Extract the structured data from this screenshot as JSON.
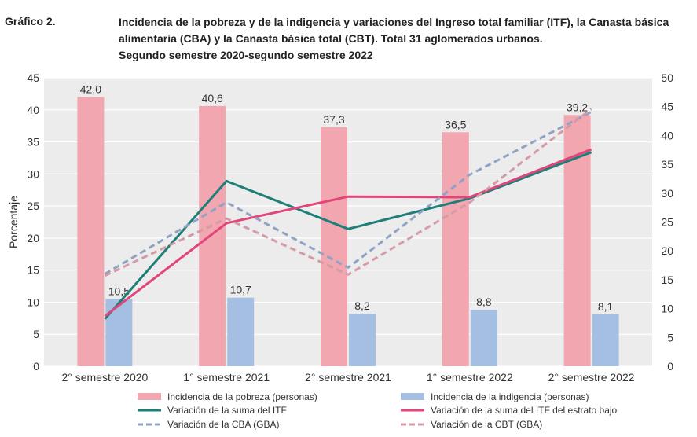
{
  "header": {
    "label": "Gráfico 2.",
    "title_lines": [
      "Incidencia de la pobreza y de la indigencia y variaciones del Ingreso total familiar (ITF), la Canasta básica",
      "alimentaria (CBA) y la Canasta básica total (CBT). Total 31 aglomerados urbanos.",
      "Segundo semestre 2020-segundo semestre 2022"
    ]
  },
  "chart_data": {
    "type": "bar",
    "categories": [
      "2° semestre 2020",
      "1° semestre 2021",
      "2° semestre 2021",
      "1° semestre 2022",
      "2° semestre 2022"
    ],
    "ylabel": "Porcentaje",
    "ylim": [
      0,
      45
    ],
    "yticks": [
      0,
      5,
      10,
      15,
      20,
      25,
      30,
      35,
      40,
      45
    ],
    "y2lim": [
      0,
      50
    ],
    "y2ticks": [
      0,
      5,
      10,
      15,
      20,
      25,
      30,
      35,
      40,
      45,
      50
    ],
    "grid": true,
    "legend_position": "bottom",
    "bar_series": [
      {
        "name": "Incidencia de la pobreza (personas)",
        "color": "#f2a6b0",
        "values": [
          42.0,
          40.6,
          37.3,
          36.5,
          39.2
        ],
        "labels": [
          "42,0",
          "40,6",
          "37,3",
          "36,5",
          "39,2"
        ]
      },
      {
        "name": "Incidencia de la indigencia (personas)",
        "color": "#a5bfe3",
        "values": [
          10.5,
          10.7,
          8.2,
          8.8,
          8.1
        ],
        "labels": [
          "10,5",
          "10,7",
          "8,2",
          "8,8",
          "8,1"
        ]
      }
    ],
    "line_series": [
      {
        "name": "Variación de la suma del ITF",
        "color": "#1e7f78",
        "dashed": false,
        "axis": "right",
        "values": [
          8.2,
          32.1,
          23.8,
          29.1,
          37.1
        ]
      },
      {
        "name": "Variación de la suma del ITF del estrato bajo",
        "color": "#e2457a",
        "dashed": false,
        "axis": "right",
        "values": [
          8.7,
          24.8,
          29.4,
          29.3,
          37.6
        ]
      },
      {
        "name": "Variación de la CBA (GBA)",
        "color": "#8fa3c4",
        "dashed": true,
        "axis": "right",
        "values": [
          16.0,
          28.4,
          17.1,
          33.2,
          44.1
        ]
      },
      {
        "name": "Variación de la CBT (GBA)",
        "color": "#d49aa6",
        "dashed": true,
        "axis": "right",
        "values": [
          15.7,
          25.6,
          15.9,
          28.4,
          44.6
        ]
      }
    ]
  }
}
